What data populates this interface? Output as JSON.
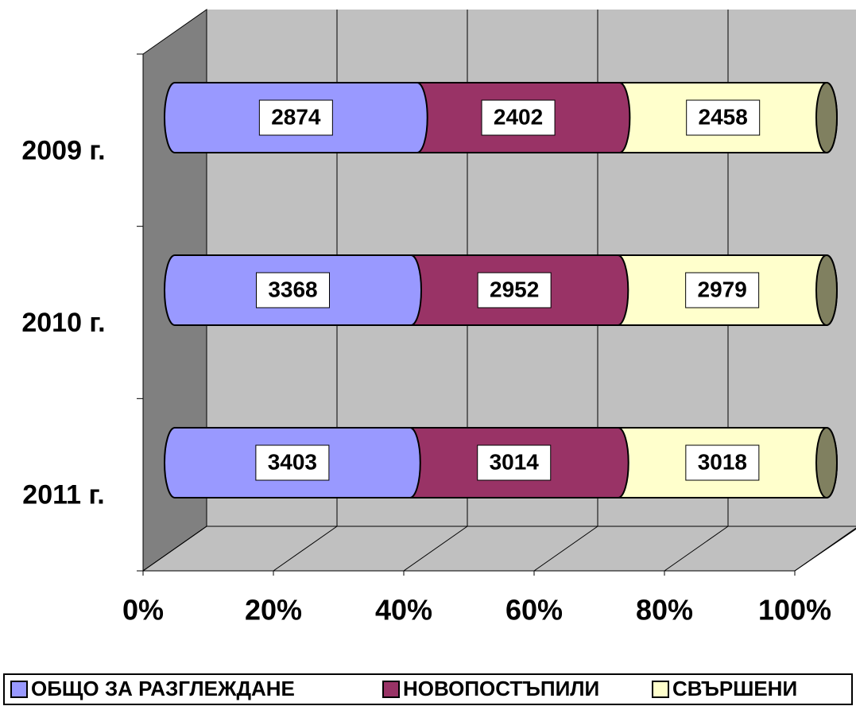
{
  "chart_data": {
    "type": "bar",
    "orientation": "horizontal",
    "stacking": "percent",
    "categories": [
      "2009 г.",
      "2010 г.",
      "2011 г."
    ],
    "series": [
      {
        "name": "ОБЩО ЗА РАЗГЛЕЖДАНЕ",
        "color": "#9999ff",
        "values": [
          2874,
          3368,
          3403
        ]
      },
      {
        "name": "НОВОПОСТЪПИЛИ",
        "color": "#993366",
        "values": [
          2402,
          2952,
          3014
        ]
      },
      {
        "name": "СВЪРШЕНИ",
        "color": "#ffffcc",
        "values": [
          2458,
          2979,
          3018
        ]
      }
    ],
    "xlim": [
      0,
      100
    ],
    "xticks": [
      {
        "value": 0,
        "label": "0%"
      },
      {
        "value": 20,
        "label": "20%"
      },
      {
        "value": 40,
        "label": "40%"
      },
      {
        "value": 60,
        "label": "60%"
      },
      {
        "value": 80,
        "label": "80%"
      },
      {
        "value": 100,
        "label": "100%"
      }
    ],
    "grid": true,
    "legend": "bottom"
  }
}
